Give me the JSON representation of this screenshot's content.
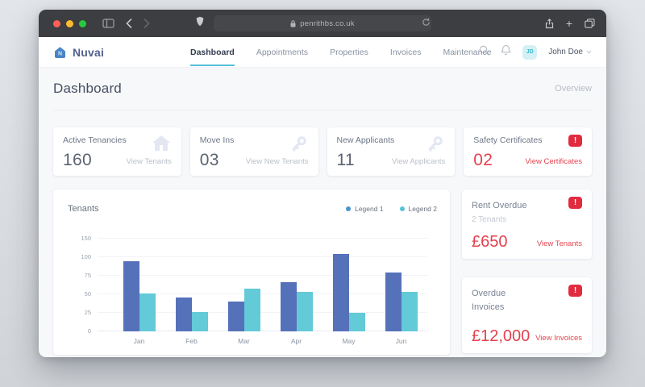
{
  "browser": {
    "url": "penrithbs.co.uk",
    "traffic_lights": {
      "close": "#ff5f57",
      "minimize": "#febc2e",
      "zoom": "#28c840"
    }
  },
  "navbar": {
    "brand": "Nuvai",
    "items": [
      {
        "label": "Dashboard",
        "active": true
      },
      {
        "label": "Appointments",
        "active": false
      },
      {
        "label": "Properties",
        "active": false
      },
      {
        "label": "Invoices",
        "active": false
      },
      {
        "label": "Maintenance",
        "active": false
      }
    ],
    "user": {
      "initials": "JD",
      "name": "John Doe"
    }
  },
  "page": {
    "title": "Dashboard",
    "subtitle": "Overview"
  },
  "stat_cards": [
    {
      "title": "Active Tenancies",
      "value": "160",
      "link": "View Tenants",
      "icon": "house-icon",
      "alert": false
    },
    {
      "title": "Move Ins",
      "value": "03",
      "link": "View New Tenants",
      "icon": "key-icon",
      "alert": false
    },
    {
      "title": "New Applicants",
      "value": "11",
      "link": "View Applicants",
      "icon": "key-icon",
      "alert": false
    },
    {
      "title": "Safety Certificates",
      "value": "02",
      "link": "View Certificates",
      "icon": "alert-icon",
      "alert": true
    }
  ],
  "chart_data": {
    "type": "bar",
    "title": "Tenants",
    "categories": [
      "Jan",
      "Feb",
      "Mar",
      "Apr",
      "May",
      "Jun"
    ],
    "series": [
      {
        "name": "Legend 1",
        "color": "#5571b9",
        "values": [
          95,
          46,
          40,
          66,
          108,
          79
        ]
      },
      {
        "name": "Legend 2",
        "color": "#63cad8",
        "values": [
          51,
          26,
          58,
          53,
          25,
          53
        ]
      }
    ],
    "legend": [
      {
        "label": "Legend 1",
        "color": "#4796cf"
      },
      {
        "label": "Legend 2",
        "color": "#55c3d5"
      }
    ],
    "yticks": [
      0,
      25,
      50,
      75,
      100,
      150
    ],
    "ylim": [
      0,
      150
    ],
    "grid": true,
    "legend_position": "top-right"
  },
  "alert_cards": [
    {
      "title": "Rent Overdue",
      "subtitle": "2 Tenants",
      "value": "£650",
      "link": "View Tenants"
    },
    {
      "title": "Overdue Invoices",
      "subtitle": "",
      "value": "£12,000",
      "link": "View Invoices"
    }
  ],
  "colors": {
    "accent_teal": "#56c0d9",
    "bar_blue": "#5571b9",
    "bar_teal": "#63cad8",
    "alert_red": "#e22b3f",
    "brand_blue": "#4a85c6"
  }
}
